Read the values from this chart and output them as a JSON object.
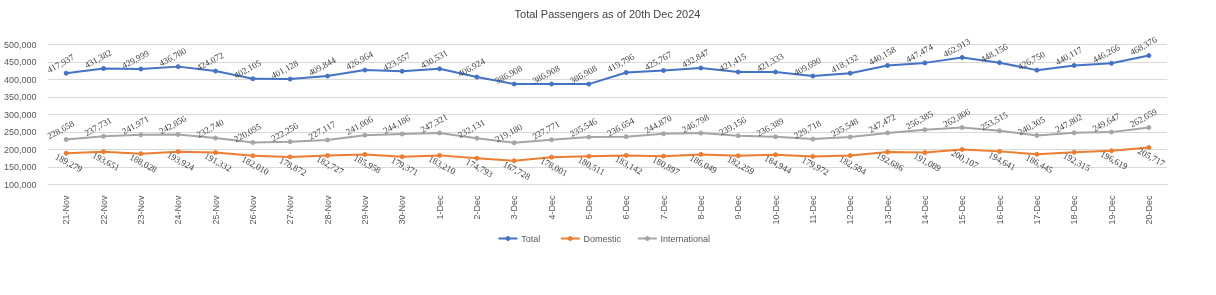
{
  "chart_data": {
    "type": "line",
    "title": "Total Passengers as of 20th Dec 2024",
    "categories": [
      "21-Nov",
      "22-Nov",
      "23-Nov",
      "24-Nov",
      "25-Nov",
      "26-Nov",
      "27-Nov",
      "28-Nov",
      "29-Nov",
      "30-Nov",
      "1-Dec",
      "2-Dec",
      "3-Dec",
      "4-Dec",
      "5-Dec",
      "6-Dec",
      "7-Dec",
      "8-Dec",
      "9-Dec",
      "10-Dec",
      "11-Dec",
      "12-Dec",
      "13-Dec",
      "14-Dec",
      "15-Dec",
      "16-Dec",
      "17-Dec",
      "18-Dec",
      "19-Dec",
      "20-Dec"
    ],
    "series": [
      {
        "name": "Total",
        "color": "#4472c4",
        "values": [
          417937,
          431382,
          429999,
          436780,
          424072,
          402105,
          401128,
          409844,
          426964,
          423557,
          430531,
          406924,
          386908,
          386908,
          386908,
          419796,
          425767,
          432847,
          421415,
          421333,
          409690,
          418132,
          440158,
          447474,
          462913,
          448156,
          426750,
          440117,
          446266,
          468376
        ],
        "value_labels": [
          "417,937",
          "431,382",
          "429,999",
          "436,780",
          "424,072",
          "402,105",
          "401,128",
          "409,844",
          "426,964",
          "423,557",
          "430,531",
          "406,924",
          "386,908",
          "386,908",
          "386,908",
          "419,796",
          "425,767",
          "432,847",
          "421,415",
          "421,333",
          "409,690",
          "418,132",
          "440,158",
          "447,474",
          "462,913",
          "448,156",
          "426,750",
          "440,117",
          "446,266",
          "468,376"
        ]
      },
      {
        "name": "Domestic",
        "color": "#ed7d31",
        "values": [
          189279,
          193651,
          188028,
          193924,
          191332,
          182010,
          178872,
          182727,
          185958,
          179371,
          183210,
          174793,
          167728,
          178001,
          180511,
          183142,
          180897,
          186049,
          182259,
          184944,
          179972,
          182584,
          192686,
          191089,
          200107,
          194641,
          186445,
          192315,
          196619,
          205717
        ],
        "value_labels": [
          "189,279",
          "193,651",
          "188,028",
          "193,924",
          "191,332",
          "182,010",
          "178,872",
          "182,727",
          "185,958",
          "179,371",
          "183,210",
          "174,793",
          "167,728",
          "178,001",
          "180,511",
          "183,142",
          "180,897",
          "186,049",
          "182,259",
          "184,944",
          "179,972",
          "182,584",
          "192,686",
          "191,089",
          "200,107",
          "194,641",
          "186,445",
          "192,315",
          "196,619",
          "205,717"
        ]
      },
      {
        "name": "International",
        "color": "#a5a5a5",
        "values": [
          228658,
          237731,
          241971,
          242856,
          232740,
          220095,
          222256,
          227117,
          241006,
          244186,
          247321,
          232131,
          219180,
          227771,
          235546,
          236654,
          244870,
          246798,
          239156,
          236389,
          229718,
          235548,
          247472,
          256385,
          262806,
          253515,
          240305,
          247802,
          249647,
          262659
        ],
        "value_labels": [
          "228,658",
          "237,731",
          "241,971",
          "242,856",
          "232,740",
          "220,095",
          "222,256",
          "227,117",
          "241,006",
          "244,186",
          "247,321",
          "232,131",
          "219,180",
          "227,771",
          "235,546",
          "236,654",
          "244,870",
          "246,798",
          "239,156",
          "236,389",
          "229,718",
          "235,548",
          "247,472",
          "256,385",
          "262,806",
          "253,515",
          "240,305",
          "247,802",
          "249,647",
          "262,659"
        ]
      }
    ],
    "ylim": [
      100000,
      500000
    ],
    "yticks": [
      {
        "value": 100000,
        "label": "100,000"
      },
      {
        "value": 150000,
        "label": "150,000"
      },
      {
        "value": 200000,
        "label": "200,000"
      },
      {
        "value": 250000,
        "label": "250,000"
      },
      {
        "value": 300000,
        "label": "300,000"
      },
      {
        "value": 350000,
        "label": "350,000"
      },
      {
        "value": 400000,
        "label": "400,000"
      },
      {
        "value": 450000,
        "label": "450,000"
      },
      {
        "value": 500000,
        "label": "500,000"
      }
    ],
    "grid": "y",
    "legend": "bottom",
    "marker": "circle",
    "line_style": "solid"
  }
}
